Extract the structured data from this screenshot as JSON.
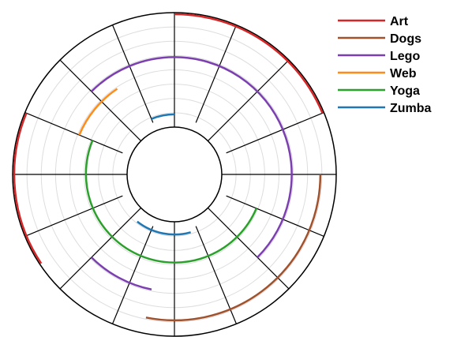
{
  "chart_data": {
    "type": "radial-timeline",
    "sectors": 16,
    "rings": 8,
    "series": [
      {
        "name": "Art",
        "color": "#d62728",
        "intervals": [
          [
            0,
            3
          ],
          [
            10.5,
            13
          ]
        ]
      },
      {
        "name": "Dogs",
        "color": "#a0522d",
        "intervals": [
          [
            4,
            8.5
          ]
        ]
      },
      {
        "name": "Lego",
        "color": "#7b3fb0",
        "intervals": [
          [
            0,
            6
          ],
          [
            8.5,
            10
          ],
          [
            14,
            16
          ]
        ]
      },
      {
        "name": "Web",
        "color": "#ff8c1a",
        "intervals": [
          [
            13,
            14.5
          ]
        ]
      },
      {
        "name": "Yoga",
        "color": "#2ca02c",
        "intervals": [
          [
            5,
            13
          ]
        ]
      },
      {
        "name": "Zumba",
        "color": "#1f77b4",
        "intervals": [
          [
            7.3,
            9.7
          ],
          [
            15,
            16
          ]
        ]
      }
    ],
    "series_ring": {
      "Art": 8,
      "Dogs": 7,
      "Lego": 5,
      "Web": 4,
      "Yoga": 3,
      "Zumba": 1
    },
    "legend_position": "top-right",
    "grid": true
  }
}
